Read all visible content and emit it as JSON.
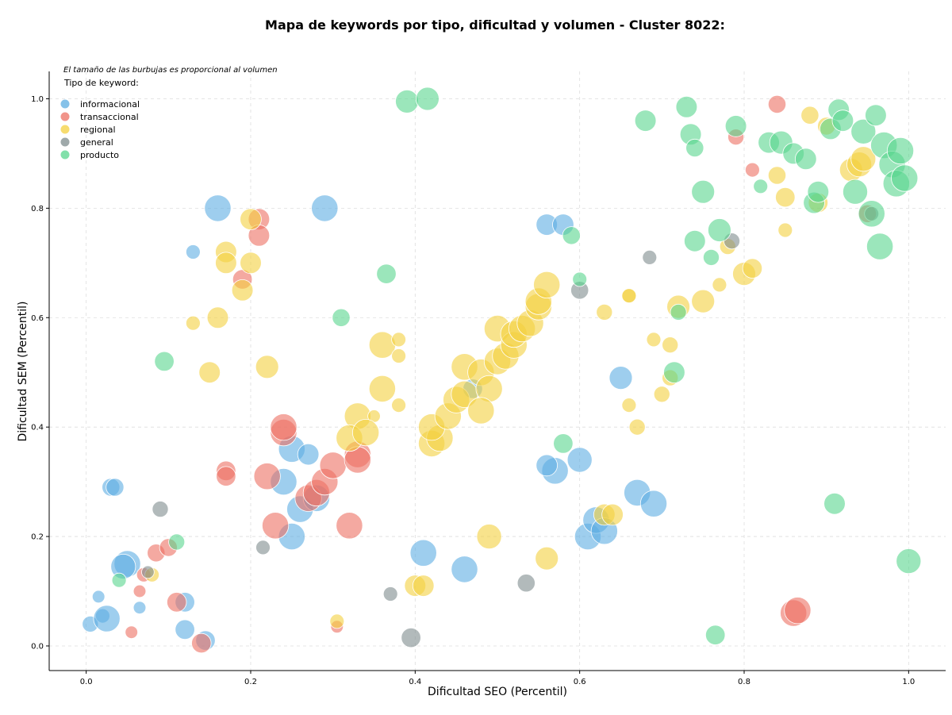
{
  "chart_data": {
    "type": "scatter",
    "title": "Mapa de keywords por tipo, dificultad y volumen - Cluster 8022:",
    "xlabel": "Dificultad SEO (Percentil)",
    "ylabel": "Dificultad SEM (Percentil)",
    "xlim": [
      -0.045,
      1.045
    ],
    "ylim": [
      -0.045,
      1.05
    ],
    "xticks": [
      "0.0",
      "0.2",
      "0.4",
      "0.6",
      "0.8",
      "1.0"
    ],
    "yticks": [
      "0.0",
      "0.2",
      "0.4",
      "0.6",
      "0.8",
      "1.0"
    ],
    "grid": true,
    "note": "El tamaño de las burbujas es proporcional al volumen",
    "legend_title": "Tipo de keyword:",
    "legend_position": "top-left",
    "series": [
      {
        "name": "informacional",
        "color": "#5DADE2",
        "points": [
          [
            0.16,
            0.8,
            60
          ],
          [
            0.29,
            0.8,
            60
          ],
          [
            0.13,
            0.72,
            25
          ],
          [
            0.56,
            0.77,
            45
          ],
          [
            0.58,
            0.77,
            45
          ],
          [
            0.03,
            0.29,
            35
          ],
          [
            0.035,
            0.29,
            35
          ],
          [
            0.015,
            0.09,
            20
          ],
          [
            0.005,
            0.04,
            30
          ],
          [
            0.02,
            0.055,
            25
          ],
          [
            0.025,
            0.05,
            60
          ],
          [
            0.05,
            0.15,
            60
          ],
          [
            0.045,
            0.145,
            55
          ],
          [
            0.065,
            0.07,
            20
          ],
          [
            0.12,
            0.08,
            40
          ],
          [
            0.12,
            0.03,
            40
          ],
          [
            0.145,
            0.01,
            40
          ],
          [
            0.25,
            0.36,
            60
          ],
          [
            0.24,
            0.3,
            60
          ],
          [
            0.27,
            0.35,
            45
          ],
          [
            0.26,
            0.25,
            60
          ],
          [
            0.25,
            0.2,
            60
          ],
          [
            0.28,
            0.27,
            60
          ],
          [
            0.41,
            0.17,
            60
          ],
          [
            0.46,
            0.14,
            60
          ],
          [
            0.47,
            0.47,
            40
          ],
          [
            0.57,
            0.32,
            60
          ],
          [
            0.56,
            0.33,
            45
          ],
          [
            0.6,
            0.34,
            55
          ],
          [
            0.61,
            0.2,
            60
          ],
          [
            0.62,
            0.23,
            60
          ],
          [
            0.63,
            0.21,
            60
          ],
          [
            0.65,
            0.49,
            50
          ],
          [
            0.67,
            0.28,
            60
          ],
          [
            0.69,
            0.26,
            60
          ]
        ]
      },
      {
        "name": "transaccional",
        "color": "#EC7063",
        "points": [
          [
            0.21,
            0.78,
            45
          ],
          [
            0.21,
            0.75,
            45
          ],
          [
            0.19,
            0.67,
            40
          ],
          [
            0.17,
            0.32,
            40
          ],
          [
            0.17,
            0.31,
            40
          ],
          [
            0.24,
            0.39,
            60
          ],
          [
            0.24,
            0.4,
            60
          ],
          [
            0.22,
            0.31,
            60
          ],
          [
            0.23,
            0.22,
            60
          ],
          [
            0.27,
            0.27,
            60
          ],
          [
            0.28,
            0.28,
            60
          ],
          [
            0.29,
            0.3,
            60
          ],
          [
            0.3,
            0.33,
            60
          ],
          [
            0.33,
            0.35,
            60
          ],
          [
            0.33,
            0.34,
            60
          ],
          [
            0.32,
            0.22,
            60
          ],
          [
            0.11,
            0.08,
            40
          ],
          [
            0.14,
            0.005,
            40
          ],
          [
            0.085,
            0.17,
            35
          ],
          [
            0.1,
            0.18,
            35
          ],
          [
            0.07,
            0.13,
            25
          ],
          [
            0.065,
            0.1,
            20
          ],
          [
            0.055,
            0.025,
            20
          ],
          [
            0.305,
            0.035,
            20
          ],
          [
            0.84,
            0.99,
            35
          ],
          [
            0.79,
            0.93,
            30
          ],
          [
            0.81,
            0.87,
            25
          ],
          [
            0.86,
            0.06,
            60
          ],
          [
            0.865,
            0.065,
            60
          ],
          [
            0.95,
            0.79,
            35
          ]
        ]
      },
      {
        "name": "regional",
        "color": "#F4D03F",
        "points": [
          [
            0.2,
            0.78,
            45
          ],
          [
            0.17,
            0.72,
            45
          ],
          [
            0.17,
            0.7,
            45
          ],
          [
            0.2,
            0.7,
            45
          ],
          [
            0.19,
            0.65,
            45
          ],
          [
            0.16,
            0.6,
            45
          ],
          [
            0.13,
            0.59,
            25
          ],
          [
            0.22,
            0.51,
            50
          ],
          [
            0.15,
            0.5,
            45
          ],
          [
            0.36,
            0.55,
            60
          ],
          [
            0.38,
            0.56,
            25
          ],
          [
            0.38,
            0.53,
            25
          ],
          [
            0.36,
            0.47,
            60
          ],
          [
            0.33,
            0.42,
            60
          ],
          [
            0.35,
            0.42,
            20
          ],
          [
            0.32,
            0.38,
            60
          ],
          [
            0.34,
            0.39,
            60
          ],
          [
            0.38,
            0.44,
            25
          ],
          [
            0.42,
            0.37,
            60
          ],
          [
            0.43,
            0.38,
            60
          ],
          [
            0.42,
            0.4,
            60
          ],
          [
            0.44,
            0.42,
            60
          ],
          [
            0.45,
            0.45,
            60
          ],
          [
            0.46,
            0.46,
            60
          ],
          [
            0.46,
            0.51,
            60
          ],
          [
            0.48,
            0.5,
            60
          ],
          [
            0.49,
            0.47,
            60
          ],
          [
            0.48,
            0.43,
            60
          ],
          [
            0.5,
            0.58,
            60
          ],
          [
            0.5,
            0.52,
            60
          ],
          [
            0.51,
            0.53,
            60
          ],
          [
            0.52,
            0.55,
            60
          ],
          [
            0.52,
            0.57,
            60
          ],
          [
            0.53,
            0.58,
            60
          ],
          [
            0.54,
            0.59,
            60
          ],
          [
            0.55,
            0.62,
            60
          ],
          [
            0.55,
            0.63,
            60
          ],
          [
            0.56,
            0.66,
            60
          ],
          [
            0.4,
            0.11,
            45
          ],
          [
            0.41,
            0.11,
            45
          ],
          [
            0.49,
            0.2,
            55
          ],
          [
            0.56,
            0.16,
            50
          ],
          [
            0.63,
            0.24,
            45
          ],
          [
            0.64,
            0.24,
            45
          ],
          [
            0.63,
            0.61,
            30
          ],
          [
            0.66,
            0.64,
            25
          ],
          [
            0.66,
            0.64,
            25
          ],
          [
            0.66,
            0.44,
            25
          ],
          [
            0.67,
            0.4,
            30
          ],
          [
            0.69,
            0.56,
            25
          ],
          [
            0.71,
            0.55,
            30
          ],
          [
            0.7,
            0.46,
            30
          ],
          [
            0.71,
            0.49,
            30
          ],
          [
            0.72,
            0.62,
            50
          ],
          [
            0.75,
            0.63,
            50
          ],
          [
            0.77,
            0.66,
            25
          ],
          [
            0.78,
            0.73,
            30
          ],
          [
            0.8,
            0.68,
            50
          ],
          [
            0.81,
            0.69,
            40
          ],
          [
            0.85,
            0.82,
            40
          ],
          [
            0.85,
            0.76,
            25
          ],
          [
            0.84,
            0.86,
            35
          ],
          [
            0.88,
            0.97,
            35
          ],
          [
            0.89,
            0.81,
            40
          ],
          [
            0.9,
            0.95,
            35
          ],
          [
            0.93,
            0.87,
            50
          ],
          [
            0.94,
            0.88,
            55
          ],
          [
            0.945,
            0.89,
            55
          ],
          [
            0.08,
            0.13,
            25
          ],
          [
            0.305,
            0.045,
            25
          ]
        ]
      },
      {
        "name": "general",
        "color": "#7F8C8D",
        "points": [
          [
            0.09,
            0.25,
            30
          ],
          [
            0.075,
            0.135,
            20
          ],
          [
            0.215,
            0.18,
            25
          ],
          [
            0.37,
            0.095,
            25
          ],
          [
            0.395,
            0.015,
            40
          ],
          [
            0.535,
            0.115,
            35
          ],
          [
            0.6,
            0.65,
            35
          ],
          [
            0.685,
            0.71,
            25
          ],
          [
            0.785,
            0.74,
            30
          ],
          [
            0.955,
            0.79,
            25
          ]
        ]
      },
      {
        "name": "producto",
        "color": "#58D68D",
        "points": [
          [
            0.39,
            0.995,
            50
          ],
          [
            0.415,
            1.0,
            50
          ],
          [
            0.365,
            0.68,
            40
          ],
          [
            0.31,
            0.6,
            35
          ],
          [
            0.095,
            0.52,
            40
          ],
          [
            0.11,
            0.19,
            30
          ],
          [
            0.04,
            0.12,
            25
          ],
          [
            0.58,
            0.37,
            40
          ],
          [
            0.6,
            0.67,
            25
          ],
          [
            0.59,
            0.75,
            35
          ],
          [
            0.68,
            0.96,
            45
          ],
          [
            0.73,
            0.985,
            45
          ],
          [
            0.735,
            0.935,
            45
          ],
          [
            0.74,
            0.91,
            35
          ],
          [
            0.75,
            0.83,
            50
          ],
          [
            0.74,
            0.74,
            45
          ],
          [
            0.76,
            0.71,
            30
          ],
          [
            0.77,
            0.76,
            50
          ],
          [
            0.72,
            0.61,
            30
          ],
          [
            0.715,
            0.5,
            45
          ],
          [
            0.79,
            0.95,
            45
          ],
          [
            0.82,
            0.84,
            25
          ],
          [
            0.83,
            0.92,
            45
          ],
          [
            0.845,
            0.92,
            50
          ],
          [
            0.86,
            0.9,
            45
          ],
          [
            0.875,
            0.89,
            45
          ],
          [
            0.885,
            0.81,
            45
          ],
          [
            0.89,
            0.83,
            45
          ],
          [
            0.905,
            0.945,
            45
          ],
          [
            0.915,
            0.98,
            45
          ],
          [
            0.92,
            0.96,
            45
          ],
          [
            0.935,
            0.83,
            55
          ],
          [
            0.945,
            0.94,
            55
          ],
          [
            0.96,
            0.97,
            45
          ],
          [
            0.955,
            0.79,
            60
          ],
          [
            0.965,
            0.73,
            60
          ],
          [
            0.97,
            0.915,
            60
          ],
          [
            0.98,
            0.88,
            60
          ],
          [
            0.985,
            0.845,
            60
          ],
          [
            0.99,
            0.905,
            60
          ],
          [
            0.995,
            0.855,
            60
          ],
          [
            0.91,
            0.26,
            45
          ],
          [
            1.0,
            0.155,
            55
          ],
          [
            0.765,
            0.02,
            40
          ]
        ]
      }
    ]
  }
}
